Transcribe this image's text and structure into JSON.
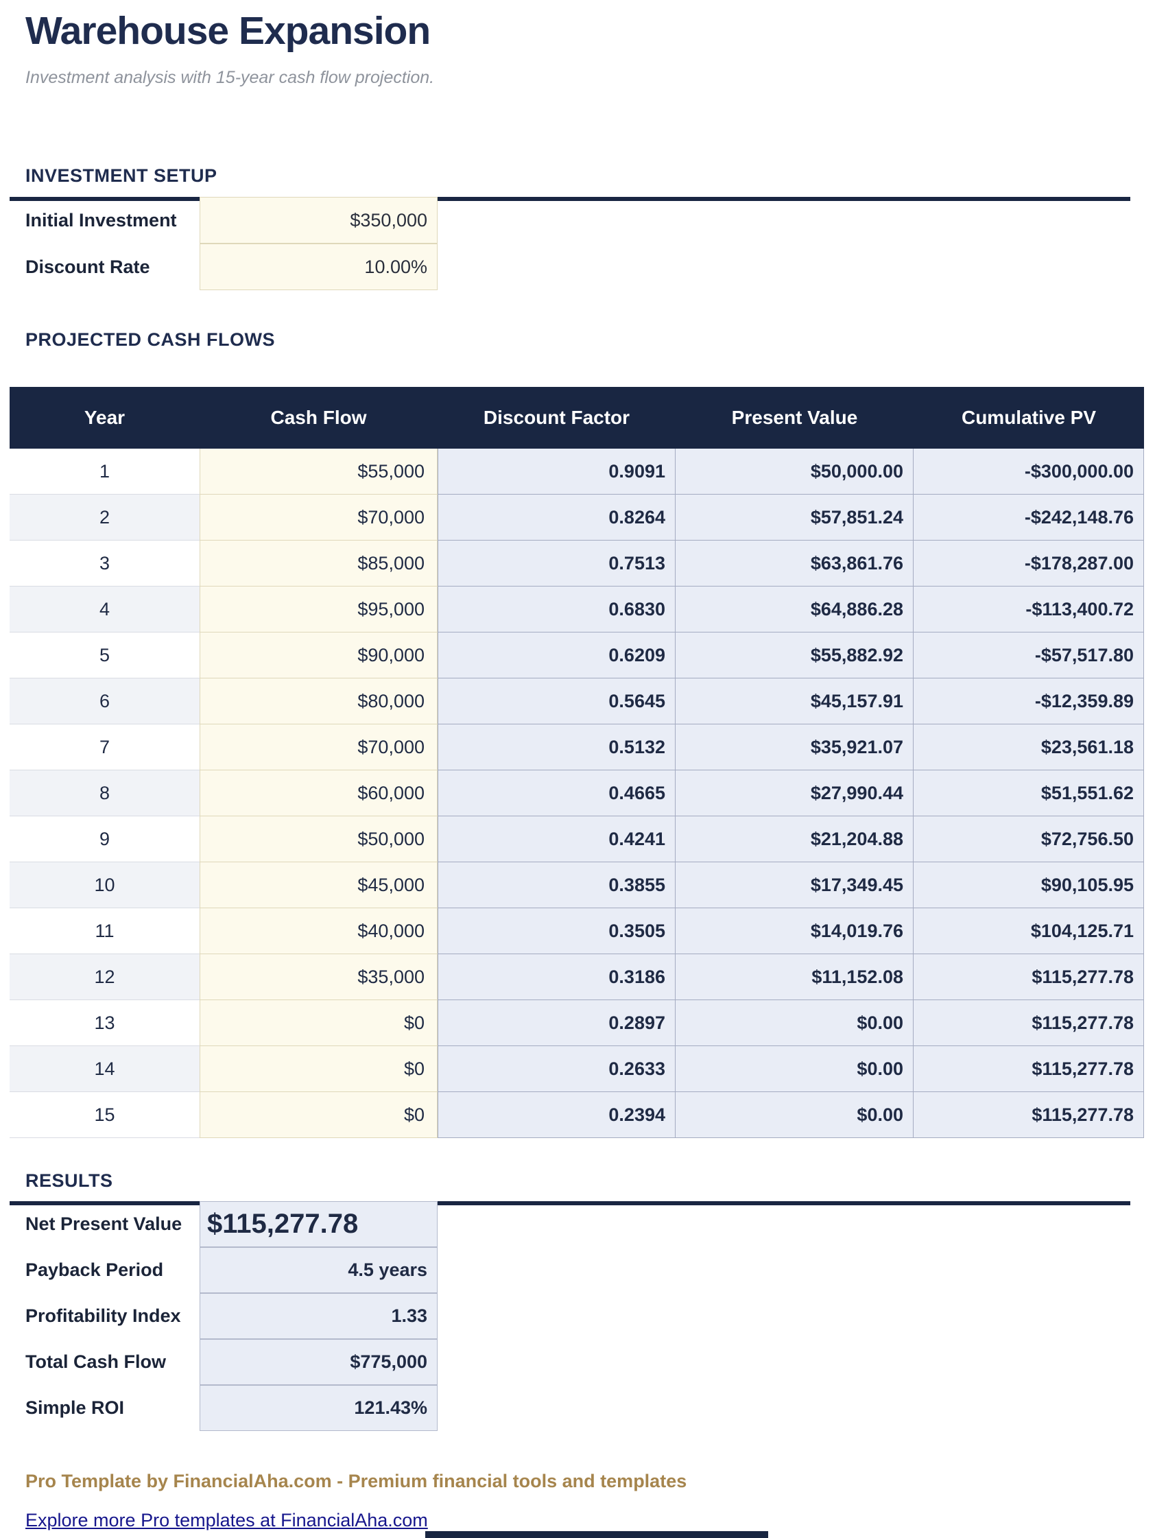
{
  "header": {
    "title": "Warehouse Expansion",
    "subtitle": "Investment analysis with 15-year cash flow projection."
  },
  "investment_setup": {
    "heading": "INVESTMENT SETUP",
    "fields": [
      {
        "label": "Initial Investment",
        "value": "$350,000"
      },
      {
        "label": "Discount Rate",
        "value": "10.00%"
      }
    ]
  },
  "projected_cash_flows": {
    "heading": "PROJECTED CASH FLOWS",
    "columns": [
      "Year",
      "Cash Flow",
      "Discount Factor",
      "Present Value",
      "Cumulative PV"
    ],
    "rows": [
      [
        "1",
        "$55,000",
        "0.9091",
        "$50,000.00",
        "-$300,000.00"
      ],
      [
        "2",
        "$70,000",
        "0.8264",
        "$57,851.24",
        "-$242,148.76"
      ],
      [
        "3",
        "$85,000",
        "0.7513",
        "$63,861.76",
        "-$178,287.00"
      ],
      [
        "4",
        "$95,000",
        "0.6830",
        "$64,886.28",
        "-$113,400.72"
      ],
      [
        "5",
        "$90,000",
        "0.6209",
        "$55,882.92",
        "-$57,517.80"
      ],
      [
        "6",
        "$80,000",
        "0.5645",
        "$45,157.91",
        "-$12,359.89"
      ],
      [
        "7",
        "$70,000",
        "0.5132",
        "$35,921.07",
        "$23,561.18"
      ],
      [
        "8",
        "$60,000",
        "0.4665",
        "$27,990.44",
        "$51,551.62"
      ],
      [
        "9",
        "$50,000",
        "0.4241",
        "$21,204.88",
        "$72,756.50"
      ],
      [
        "10",
        "$45,000",
        "0.3855",
        "$17,349.45",
        "$90,105.95"
      ],
      [
        "11",
        "$40,000",
        "0.3505",
        "$14,019.76",
        "$104,125.71"
      ],
      [
        "12",
        "$35,000",
        "0.3186",
        "$11,152.08",
        "$115,277.78"
      ],
      [
        "13",
        "$0",
        "0.2897",
        "$0.00",
        "$115,277.78"
      ],
      [
        "14",
        "$0",
        "0.2633",
        "$0.00",
        "$115,277.78"
      ],
      [
        "15",
        "$0",
        "0.2394",
        "$0.00",
        "$115,277.78"
      ]
    ]
  },
  "results": {
    "heading": "RESULTS",
    "items": [
      {
        "label": "Net Present Value",
        "value": "$115,277.78",
        "emphasis": true
      },
      {
        "label": "Payback Period",
        "value": "4.5 years",
        "emphasis": false
      },
      {
        "label": "Profitability Index",
        "value": "1.33",
        "emphasis": false
      },
      {
        "label": "Total Cash Flow",
        "value": "$775,000",
        "emphasis": false
      },
      {
        "label": "Simple ROI",
        "value": "121.43%",
        "emphasis": false
      }
    ]
  },
  "footer": {
    "credit": "Pro Template by FinancialAha.com - Premium financial tools and templates",
    "link": "Explore more Pro templates at FinancialAha.com"
  },
  "colors": {
    "navy": "#192642",
    "heading_text": "#1f2c4e",
    "cell_text": "#1f2a44",
    "cream_bg": "#fdfaec",
    "cream_border": "#dfd8ba",
    "lavender_bg": "#e9edf6",
    "lavender_border": "#a4abc1",
    "alt_row": "#f1f3f7",
    "gold": "#a6854d",
    "link_blue": "#16168c"
  }
}
